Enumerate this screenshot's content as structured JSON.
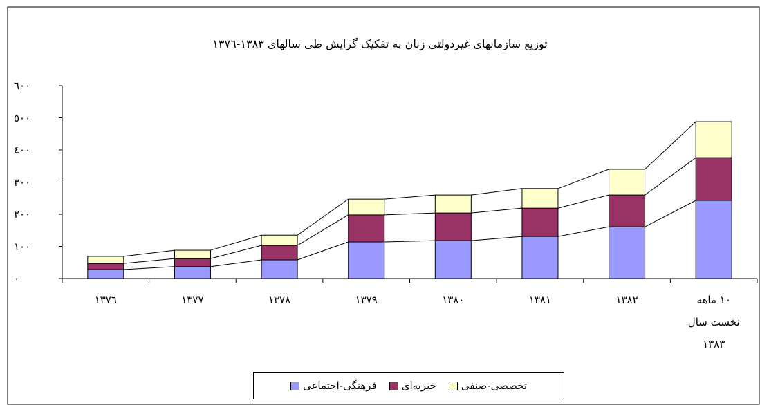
{
  "chart_data": {
    "type": "stacked_bar",
    "title": "توزیع سازمانهای غیردولتی زنان به تفکیک گرایش طی سالهای ١٣٨٣-١٣٧٦",
    "categories": [
      "١٣٧٦",
      "١٣٧٧",
      "١٣٧٨",
      "١٣٧٩",
      "١٣٨٠",
      "١٣٨١",
      "١٣٨٢",
      "١٠ ماهه\nنخست سال\n١٣٨٣"
    ],
    "series": [
      {
        "name": "فرهنگی-اجتماعی",
        "color": "#9999ff",
        "values": [
          28,
          37,
          58,
          114,
          118,
          131,
          161,
          243
        ]
      },
      {
        "name": "خیریه‌ای",
        "color": "#993366",
        "values": [
          19,
          25,
          45,
          84,
          86,
          88,
          99,
          133
        ]
      },
      {
        "name": "تخصصی-صنفی",
        "color": "#ffffcc",
        "values": [
          22,
          26,
          32,
          49,
          56,
          61,
          80,
          112
        ]
      }
    ],
    "ylim": [
      0,
      600
    ],
    "yticks": [
      {
        "value": 0,
        "label": "٠"
      },
      {
        "value": 100,
        "label": "١٠٠"
      },
      {
        "value": 200,
        "label": "٢٠٠"
      },
      {
        "value": 300,
        "label": "٣٠٠"
      },
      {
        "value": 400,
        "label": "٤٠٠"
      },
      {
        "value": 500,
        "label": "٥٠٠"
      },
      {
        "value": 600,
        "label": "٦٠٠"
      }
    ],
    "legend": "bottom"
  }
}
